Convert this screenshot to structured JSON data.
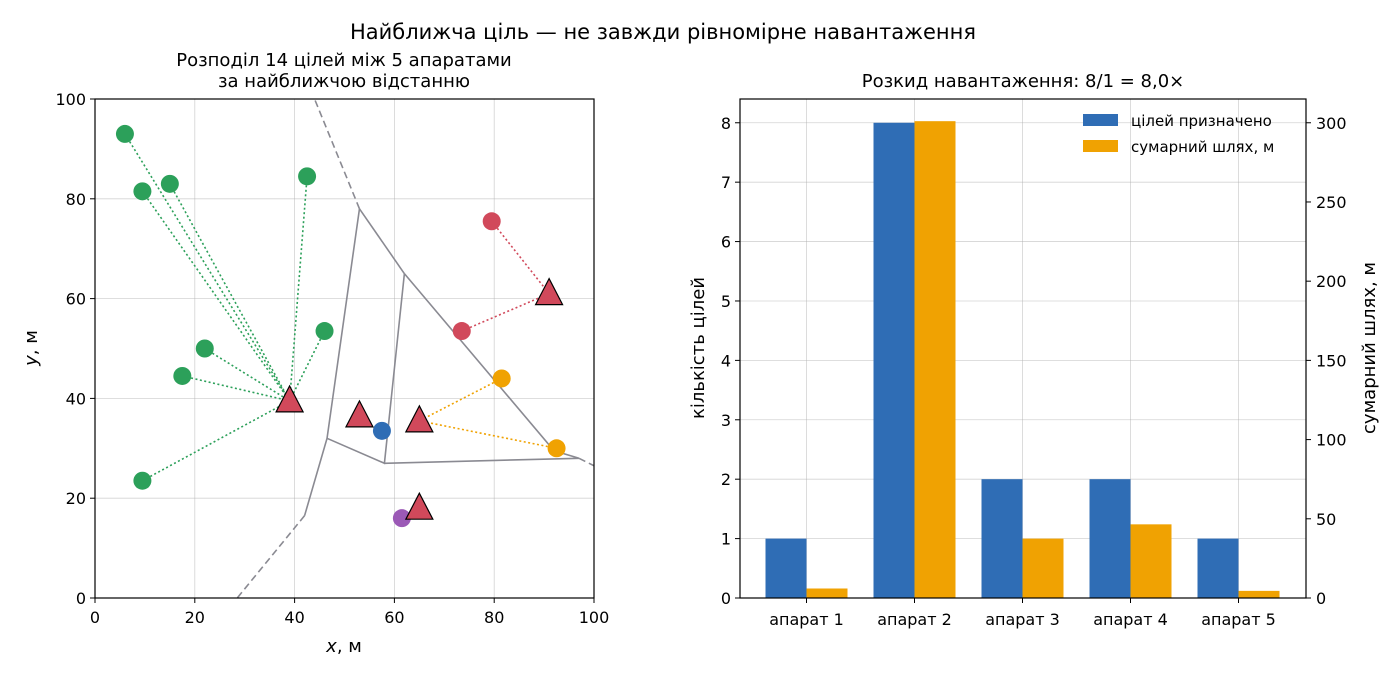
{
  "suptitle": "Найближча ціль — не завжди рівномірне навантаження",
  "chart_data": [
    {
      "type": "scatter",
      "title_line1": "Розподіл 14 цілей між 5 апаратами",
      "title_line2": "за найближчою відстанню",
      "xlabel_var": "x",
      "xlabel_unit": ", м",
      "ylabel_var": "y",
      "ylabel_unit": ", м",
      "xlim": [
        0,
        100
      ],
      "ylim": [
        0,
        100
      ],
      "xticks": [
        "0",
        "20",
        "40",
        "60",
        "80",
        "100"
      ],
      "yticks": [
        "0",
        "20",
        "40",
        "60",
        "80",
        "100"
      ],
      "grid": true,
      "colors": {
        "green": "#2ca05a",
        "red": "#d1495b",
        "orange": "#f0a202",
        "blue": "#2f6db5",
        "purple": "#9b59b6",
        "voronoi": "#8a8a92"
      },
      "vehicles": [
        {
          "x": 39,
          "y": 39.5
        },
        {
          "x": 53,
          "y": 36.5
        },
        {
          "x": 65,
          "y": 35.5
        },
        {
          "x": 91,
          "y": 61
        },
        {
          "x": 65,
          "y": 18
        }
      ],
      "targets": [
        {
          "x": 6,
          "y": 93,
          "assigned": 0,
          "color": "green"
        },
        {
          "x": 9.5,
          "y": 81.5,
          "assigned": 0,
          "color": "green"
        },
        {
          "x": 15,
          "y": 83,
          "assigned": 0,
          "color": "green"
        },
        {
          "x": 42.5,
          "y": 84.5,
          "assigned": 0,
          "color": "green"
        },
        {
          "x": 46,
          "y": 53.5,
          "assigned": 0,
          "color": "green"
        },
        {
          "x": 22,
          "y": 50,
          "assigned": 0,
          "color": "green"
        },
        {
          "x": 17.5,
          "y": 44.5,
          "assigned": 0,
          "color": "green"
        },
        {
          "x": 9.5,
          "y": 23.5,
          "assigned": 0,
          "color": "green"
        },
        {
          "x": 79.5,
          "y": 75.5,
          "assigned": 3,
          "color": "red"
        },
        {
          "x": 73.5,
          "y": 53.5,
          "assigned": 3,
          "color": "red"
        },
        {
          "x": 81.5,
          "y": 44,
          "assigned": 2,
          "color": "orange"
        },
        {
          "x": 92.5,
          "y": 30,
          "assigned": 2,
          "color": "orange"
        },
        {
          "x": 57.5,
          "y": 33.5,
          "assigned": 1,
          "color": "blue"
        },
        {
          "x": 61.5,
          "y": 16,
          "assigned": 4,
          "color": "purple"
        }
      ],
      "voronoi_solid": [
        [
          [
            53,
            78
          ],
          [
            46.5,
            32
          ],
          [
            42,
            16.5
          ]
        ],
        [
          [
            53,
            78
          ],
          [
            62,
            65
          ]
        ],
        [
          [
            62,
            65
          ],
          [
            58,
            27
          ],
          [
            46.5,
            32
          ]
        ],
        [
          [
            58,
            27
          ],
          [
            97,
            28
          ]
        ],
        [
          [
            62,
            65
          ],
          [
            92,
            29.5
          ],
          [
            97,
            28
          ]
        ]
      ],
      "voronoi_dashed": [
        [
          [
            53,
            78
          ],
          [
            44,
            100
          ]
        ],
        [
          [
            42,
            16.5
          ],
          [
            28.5,
            0
          ]
        ],
        [
          [
            97,
            28
          ],
          [
            100,
            26.5
          ]
        ]
      ]
    },
    {
      "type": "bar",
      "title": "Розкид навантаження: 8/1 = 8,0×",
      "categories": [
        "апарат 1",
        "апарат 2",
        "апарат 3",
        "апарат 4",
        "апарат 5"
      ],
      "ylabel_left": "кількість цілей",
      "ylabel_right": "сумарний шлях, м",
      "ylim_left": [
        0,
        8.4
      ],
      "ylim_right": [
        0,
        315
      ],
      "yticks_left": [
        "0",
        "1",
        "2",
        "3",
        "4",
        "5",
        "6",
        "7",
        "8"
      ],
      "yticks_right": [
        "0",
        "50",
        "100",
        "150",
        "200",
        "250",
        "300"
      ],
      "legend_position": "top-right",
      "grid": true,
      "series": [
        {
          "name": "цілей призначено",
          "axis": "left",
          "color": "#2f6db5",
          "values": [
            1,
            8,
            2,
            2,
            1
          ]
        },
        {
          "name": "сумарний шлях, м",
          "axis": "right",
          "color": "#f0a202",
          "values": [
            6,
            301,
            37.5,
            46.5,
            4.5
          ]
        }
      ]
    }
  ]
}
